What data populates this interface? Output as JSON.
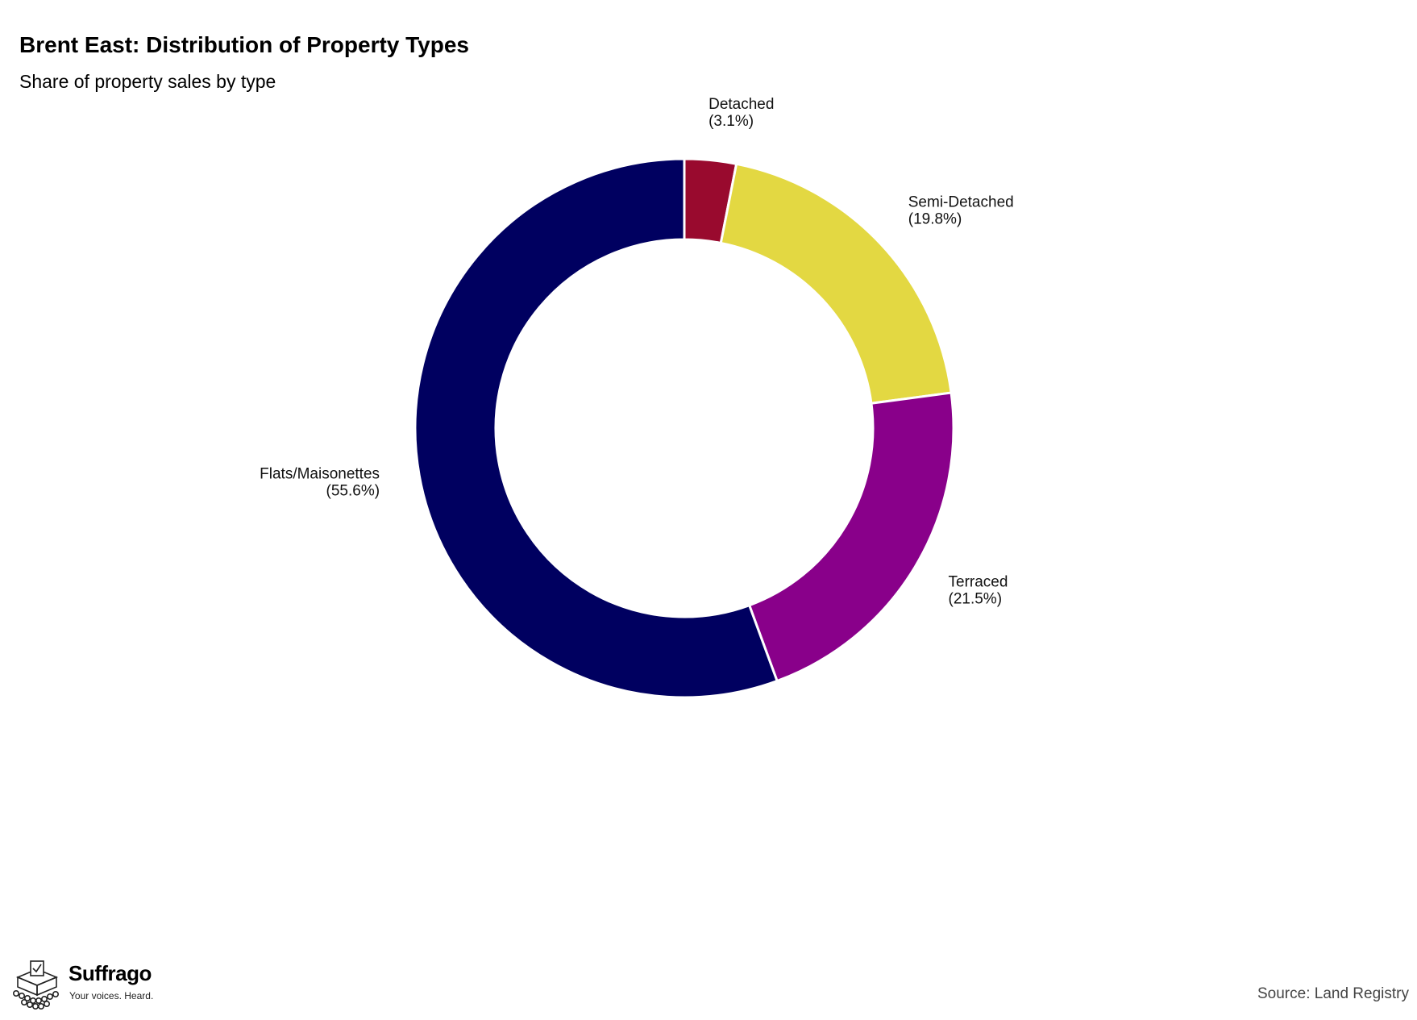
{
  "title": "Brent East: Distribution of Property Types",
  "subtitle": "Share of property sales by type",
  "source": "Source: Land Registry",
  "brand": {
    "name": "Suffrago",
    "tagline": "Your voices. Heard."
  },
  "chart_data": {
    "type": "pie",
    "variant": "donut",
    "title": "Brent East: Distribution of Property Types",
    "subtitle": "Share of property sales by type",
    "unit": "%",
    "slices": [
      {
        "name": "Detached",
        "value": 3.1,
        "label": "(3.1%)",
        "color": "#990a2e"
      },
      {
        "name": "Semi-Detached",
        "value": 19.8,
        "label": "(19.8%)",
        "color": "#e3d842"
      },
      {
        "name": "Terraced",
        "value": 21.5,
        "label": "(21.5%)",
        "color": "#89008a"
      },
      {
        "name": "Flats/Maisonettes",
        "value": 55.6,
        "label": "(55.6%)",
        "color": "#000060"
      }
    ],
    "start_angle": "12 o'clock",
    "direction": "clockwise",
    "legend": "none"
  }
}
